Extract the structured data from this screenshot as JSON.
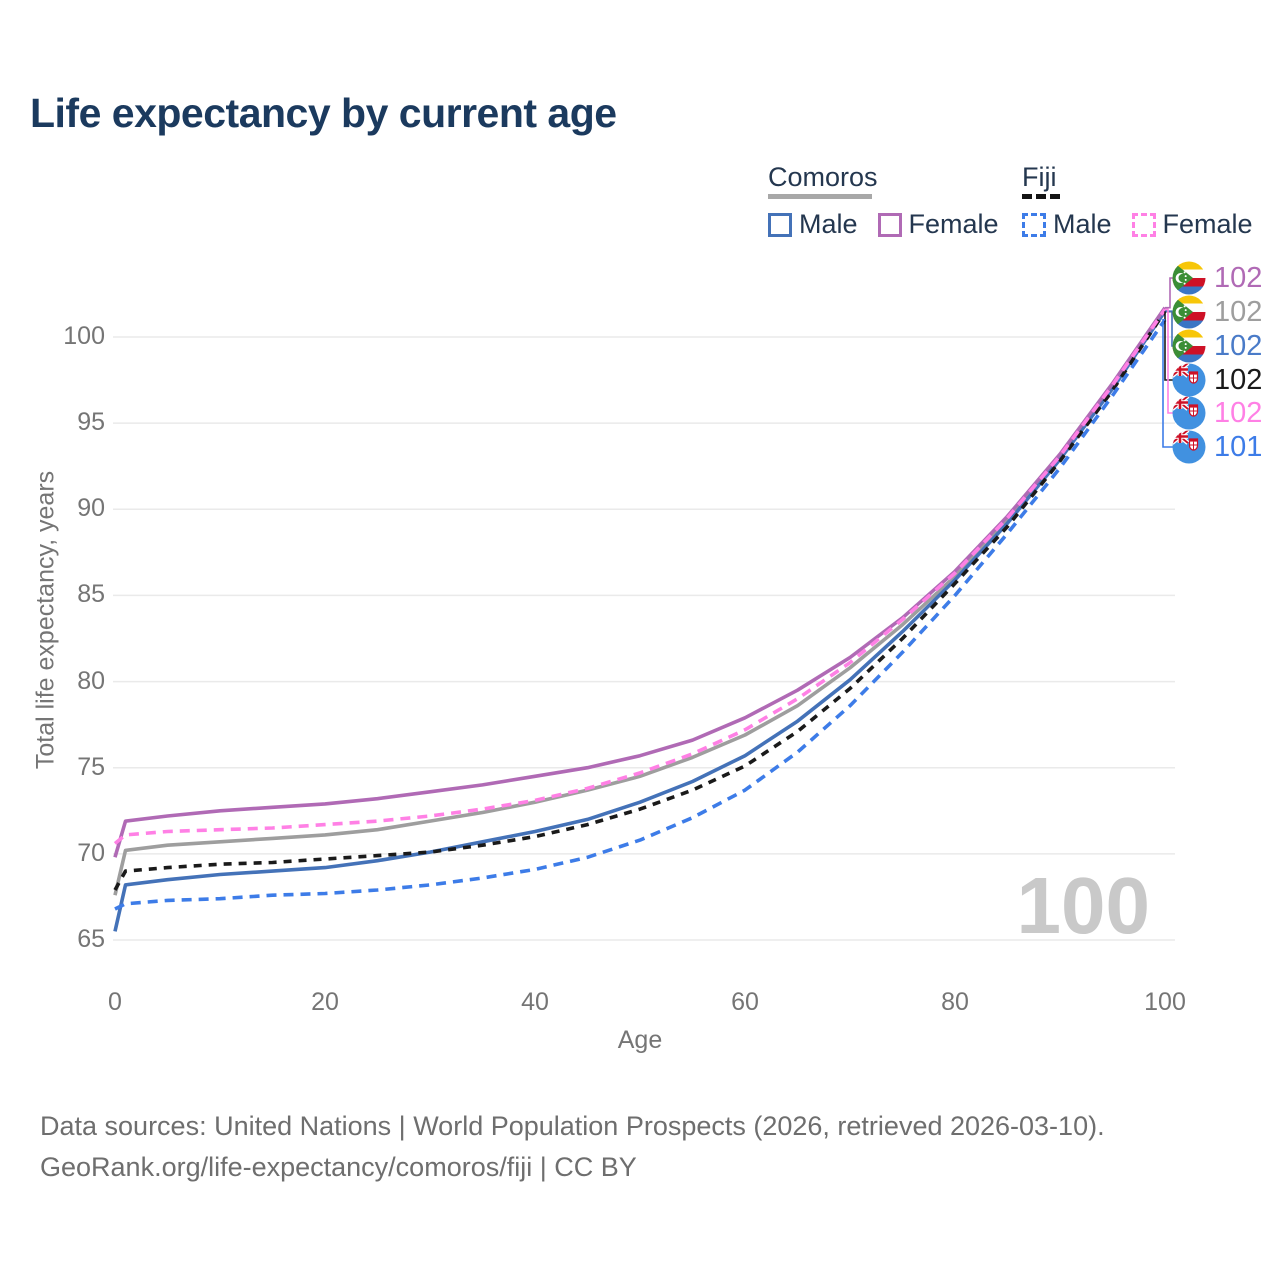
{
  "title": "Life expectancy by current age",
  "legend": {
    "groups": [
      {
        "country": "Comoros",
        "underline_color": "#a8a8a8",
        "underline_style": "solid",
        "items": [
          {
            "label": "Male",
            "color": "#4472b8",
            "style": "solid"
          },
          {
            "label": "Female",
            "color": "#b06ab5",
            "style": "solid"
          }
        ]
      },
      {
        "country": "Fiji",
        "underline_color": "#141414",
        "underline_style": "dashed",
        "items": [
          {
            "label": "Male",
            "color": "#3d7ce8",
            "style": "dashed"
          },
          {
            "label": "Female",
            "color": "#ff80e5",
            "style": "dashed"
          }
        ]
      }
    ]
  },
  "axes": {
    "x_label": "Age",
    "y_label": "Total life expectancy, years",
    "x_ticks": [
      "0",
      "20",
      "40",
      "60",
      "80",
      "100"
    ],
    "y_ticks": [
      "65",
      "70",
      "75",
      "80",
      "85",
      "90",
      "95",
      "100"
    ]
  },
  "watermark": "100",
  "end_labels": [
    {
      "country": "Comoros",
      "flag": "comoros-flag-icon",
      "value": "102",
      "color": "#b06ab5"
    },
    {
      "country": "Comoros",
      "flag": "comoros-flag-icon",
      "value": "102",
      "color": "#9e9e9e"
    },
    {
      "country": "Comoros",
      "flag": "comoros-flag-icon",
      "value": "102",
      "color": "#4a7bc8"
    },
    {
      "country": "Fiji",
      "flag": "fiji-flag-icon",
      "value": "102",
      "color": "#1a1a1a"
    },
    {
      "country": "Fiji",
      "flag": "fiji-flag-icon",
      "value": "102",
      "color": "#ff80e5"
    },
    {
      "country": "Fiji",
      "flag": "fiji-flag-icon",
      "value": "101",
      "color": "#3d7ce8"
    }
  ],
  "footer": {
    "line1": "Data sources: United Nations | World Population Prospects (2026, retrieved 2026-03-10).",
    "line2": "GeoRank.org/life-expectancy/comoros/fiji | CC BY"
  },
  "chart_data": {
    "type": "line",
    "title": "Life expectancy by current age",
    "xlabel": "Age",
    "ylabel": "Total life expectancy, years",
    "xlim": [
      0,
      100
    ],
    "ylim": [
      65,
      102
    ],
    "grid": "horizontal",
    "legend_position": "top-right",
    "x": [
      0,
      1,
      5,
      10,
      15,
      20,
      25,
      30,
      35,
      40,
      45,
      50,
      55,
      60,
      65,
      70,
      75,
      80,
      85,
      90,
      95,
      100
    ],
    "series": [
      {
        "name": "Comoros Female",
        "country": "Comoros",
        "sex": "Female",
        "style": "solid",
        "color": "#b06ab5",
        "values": [
          69.8,
          71.9,
          72.2,
          72.5,
          72.7,
          72.9,
          73.2,
          73.6,
          74.0,
          74.5,
          75.0,
          75.7,
          76.6,
          77.9,
          79.5,
          81.4,
          83.7,
          86.4,
          89.6,
          93.2,
          97.3,
          101.7
        ]
      },
      {
        "name": "Comoros Both sexes",
        "country": "Comoros",
        "sex": "Both",
        "style": "solid",
        "color": "#9e9e9e",
        "values": [
          67.6,
          70.2,
          70.5,
          70.7,
          70.9,
          71.1,
          71.4,
          71.9,
          72.4,
          73.0,
          73.7,
          74.5,
          75.6,
          76.9,
          78.6,
          80.8,
          83.3,
          86.1,
          89.4,
          93.0,
          97.1,
          101.6
        ]
      },
      {
        "name": "Comoros Male",
        "country": "Comoros",
        "sex": "Male",
        "style": "solid",
        "color": "#4472b8",
        "values": [
          65.5,
          68.2,
          68.5,
          68.8,
          69.0,
          69.2,
          69.6,
          70.1,
          70.7,
          71.3,
          72.0,
          73.0,
          74.2,
          75.7,
          77.7,
          80.1,
          82.9,
          85.9,
          89.2,
          92.9,
          97.0,
          101.5
        ]
      },
      {
        "name": "Fiji Both sexes",
        "country": "Fiji",
        "sex": "Both",
        "style": "dashed",
        "color": "#1a1a1a",
        "values": [
          67.9,
          69.0,
          69.2,
          69.4,
          69.5,
          69.7,
          69.9,
          70.1,
          70.5,
          71.0,
          71.7,
          72.6,
          73.7,
          75.1,
          77.1,
          79.6,
          82.5,
          85.7,
          89.0,
          92.8,
          96.9,
          101.5
        ]
      },
      {
        "name": "Fiji Female",
        "country": "Fiji",
        "sex": "Female",
        "style": "dashed",
        "color": "#ff80e5",
        "values": [
          70.6,
          71.1,
          71.3,
          71.4,
          71.5,
          71.7,
          71.9,
          72.2,
          72.6,
          73.1,
          73.8,
          74.7,
          75.8,
          77.2,
          79.0,
          81.1,
          83.6,
          86.3,
          89.5,
          93.1,
          97.2,
          101.6
        ]
      },
      {
        "name": "Fiji Male",
        "country": "Fiji",
        "sex": "Male",
        "style": "dashed",
        "color": "#3d7ce8",
        "values": [
          66.8,
          67.1,
          67.3,
          67.4,
          67.6,
          67.7,
          67.9,
          68.2,
          68.6,
          69.1,
          69.8,
          70.8,
          72.1,
          73.7,
          75.9,
          78.6,
          81.7,
          85.0,
          88.6,
          92.4,
          96.6,
          101.0
        ]
      }
    ],
    "end_value_labels": [
      102,
      102,
      102,
      102,
      102,
      101
    ],
    "age_counter_annotation": "100"
  }
}
